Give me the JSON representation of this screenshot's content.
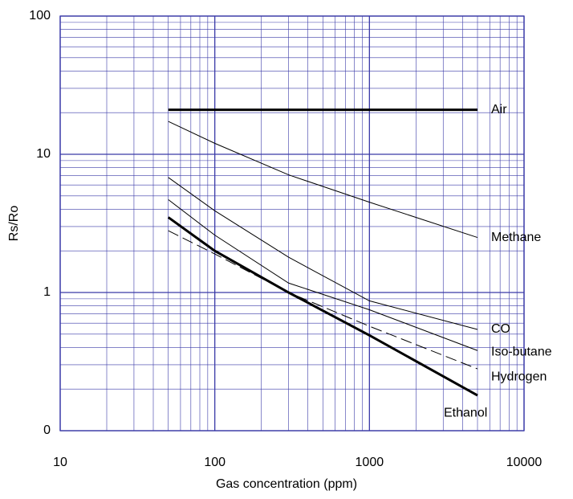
{
  "chart_data": {
    "type": "line",
    "x_label": "Gas concentration (ppm)",
    "y_label": "Rs/Ro",
    "x_scale": "log",
    "y_scale": "log",
    "grid": true,
    "grid_color": "#3a3aa8",
    "xlim": [
      10,
      10000
    ],
    "ylim": [
      0.1,
      100
    ],
    "xticks": [
      10,
      100,
      1000,
      10000
    ],
    "yticks": [
      {
        "value": 0.1,
        "label": "0"
      },
      1,
      10,
      100
    ],
    "x": [
      50,
      100,
      300,
      1000,
      5000
    ],
    "series": [
      {
        "name": "Air",
        "color": "#000000",
        "style": "bold",
        "values": [
          21,
          21,
          21,
          21,
          21
        ]
      },
      {
        "name": "Methane",
        "color": "#000000",
        "style": "thin",
        "values": [
          17.3,
          12,
          7.1,
          4.5,
          2.5
        ]
      },
      {
        "name": "CO",
        "color": "#000000",
        "style": "thin",
        "values": [
          6.8,
          3.9,
          1.8,
          0.87,
          0.54
        ]
      },
      {
        "name": "Iso-butane",
        "color": "#000000",
        "style": "thin",
        "values": [
          4.7,
          2.6,
          1.17,
          0.75,
          0.38
        ]
      },
      {
        "name": "Hydrogen",
        "color": "#000000",
        "style": "dashed",
        "values": [
          2.8,
          1.9,
          1.0,
          0.57,
          0.28
        ]
      },
      {
        "name": "Ethanol",
        "color": "#000000",
        "style": "bold",
        "values": [
          3.5,
          2.0,
          1.0,
          0.49,
          0.18
        ]
      }
    ]
  }
}
